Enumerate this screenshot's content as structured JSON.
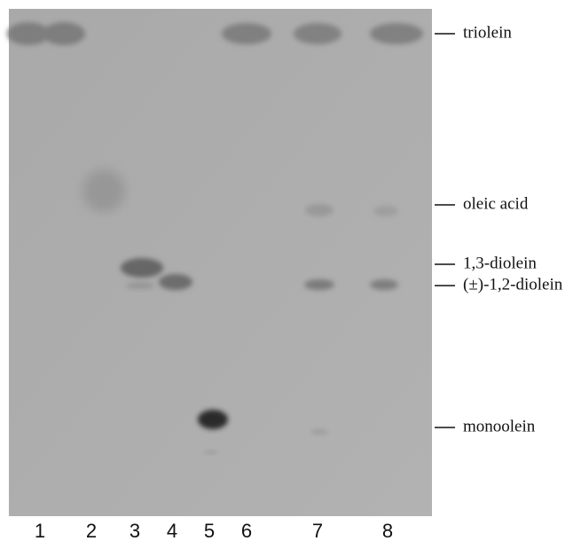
{
  "lanes": [
    "1",
    "2",
    "3",
    "4",
    "5",
    "6",
    "7",
    "8"
  ],
  "compounds": [
    "triolein",
    "oleic acid",
    "1,3-diolein",
    "(±)-1,2-diolein",
    "monoolein"
  ]
}
